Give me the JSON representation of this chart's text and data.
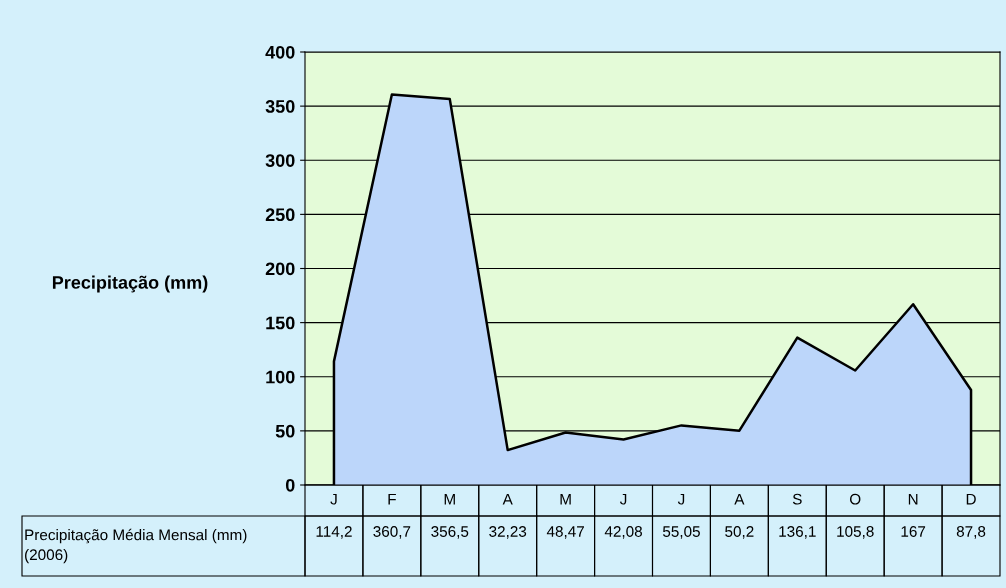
{
  "chart_data": {
    "type": "area",
    "ylabel": "Precipitação (mm)",
    "categories": [
      "J",
      "F",
      "M",
      "A",
      "M",
      "J",
      "J",
      "A",
      "S",
      "O",
      "N",
      "D"
    ],
    "series": [
      {
        "name": "Precipitação Média Mensal (mm) (2006)",
        "color": "#bcd6fa",
        "values": [
          114.2,
          360.7,
          356.5,
          32.23,
          48.47,
          42.08,
          55.05,
          50.2,
          136.1,
          105.8,
          167,
          87.8
        ],
        "value_labels": [
          "114,2",
          "360,7",
          "356,5",
          "32,23",
          "48,47",
          "42,08",
          "55,05",
          "50,2",
          "136,1",
          "105,8",
          "167",
          "87,8"
        ]
      }
    ],
    "ylim": [
      0,
      400
    ],
    "yticks": [
      0,
      50,
      100,
      150,
      200,
      250,
      300,
      350,
      400
    ],
    "grid": "y",
    "legend": false
  }
}
